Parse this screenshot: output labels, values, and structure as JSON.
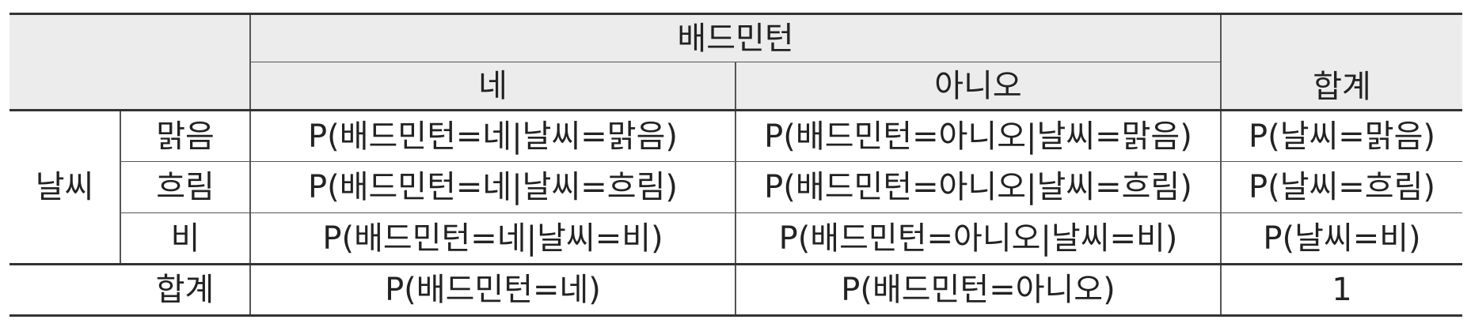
{
  "table": {
    "header": {
      "group_label": "배드민턴",
      "col_yes": "네",
      "col_no": "아니오",
      "col_total": "합계"
    },
    "row_group_label": "날씨",
    "rows": [
      {
        "label": "맑음",
        "yes": "P(배드민턴=네|날씨=맑음)",
        "no": "P(배드민턴=아니오|날씨=맑음)",
        "total": "P(날씨=맑음)"
      },
      {
        "label": "흐림",
        "yes": "P(배드민턴=네|날씨=흐림)",
        "no": "P(배드민턴=아니오|날씨=흐림)",
        "total": "P(날씨=흐림)"
      },
      {
        "label": "비",
        "yes": "P(배드민턴=네|날씨=비)",
        "no": "P(배드민턴=아니오|날씨=비)",
        "total": "P(날씨=비)"
      }
    ],
    "total_row": {
      "label": "합계",
      "yes": "P(배드민턴=네)",
      "no": "P(배드민턴=아니오)",
      "total": "1"
    }
  }
}
